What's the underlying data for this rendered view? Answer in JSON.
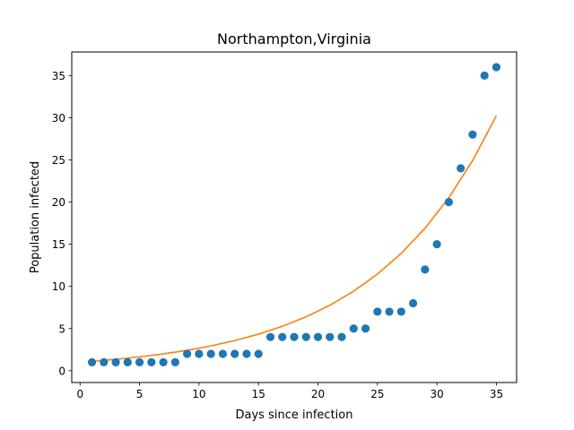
{
  "chart_data": {
    "type": "scatter",
    "title": "Northampton,Virginia",
    "xlabel": "Days since infection",
    "ylabel": "Population infected",
    "xlim": [
      -0.7,
      36.7
    ],
    "ylim": [
      -1.4,
      37.8
    ],
    "xticks": [
      0,
      5,
      10,
      15,
      20,
      25,
      30,
      35
    ],
    "yticks": [
      0,
      5,
      10,
      15,
      20,
      25,
      30,
      35
    ],
    "grid": false,
    "series": [
      {
        "kind": "scatter",
        "color": "#1f77b4",
        "x": [
          1,
          2,
          3,
          4,
          5,
          6,
          7,
          8,
          9,
          10,
          11,
          12,
          13,
          14,
          15,
          16,
          17,
          18,
          19,
          20,
          21,
          22,
          23,
          24,
          25,
          26,
          27,
          28,
          29,
          30,
          31,
          32,
          33,
          34,
          35
        ],
        "y": [
          1,
          1,
          1,
          1,
          1,
          1,
          1,
          1,
          2,
          2,
          2,
          2,
          2,
          2,
          2,
          4,
          4,
          4,
          4,
          4,
          4,
          4,
          5,
          5,
          7,
          7,
          7,
          8,
          12,
          15,
          20,
          24,
          28,
          35,
          36
        ]
      },
      {
        "kind": "line",
        "color": "#ff7f0e",
        "x": [
          1,
          3,
          5,
          7,
          9,
          11,
          13,
          15,
          17,
          19,
          21,
          23,
          25,
          27,
          29,
          31,
          33,
          35
        ],
        "y": [
          1.11,
          1.35,
          1.64,
          1.99,
          2.42,
          2.94,
          3.57,
          4.33,
          5.26,
          6.39,
          7.76,
          9.43,
          11.45,
          13.91,
          16.89,
          20.51,
          24.91,
          30.25
        ]
      }
    ]
  }
}
